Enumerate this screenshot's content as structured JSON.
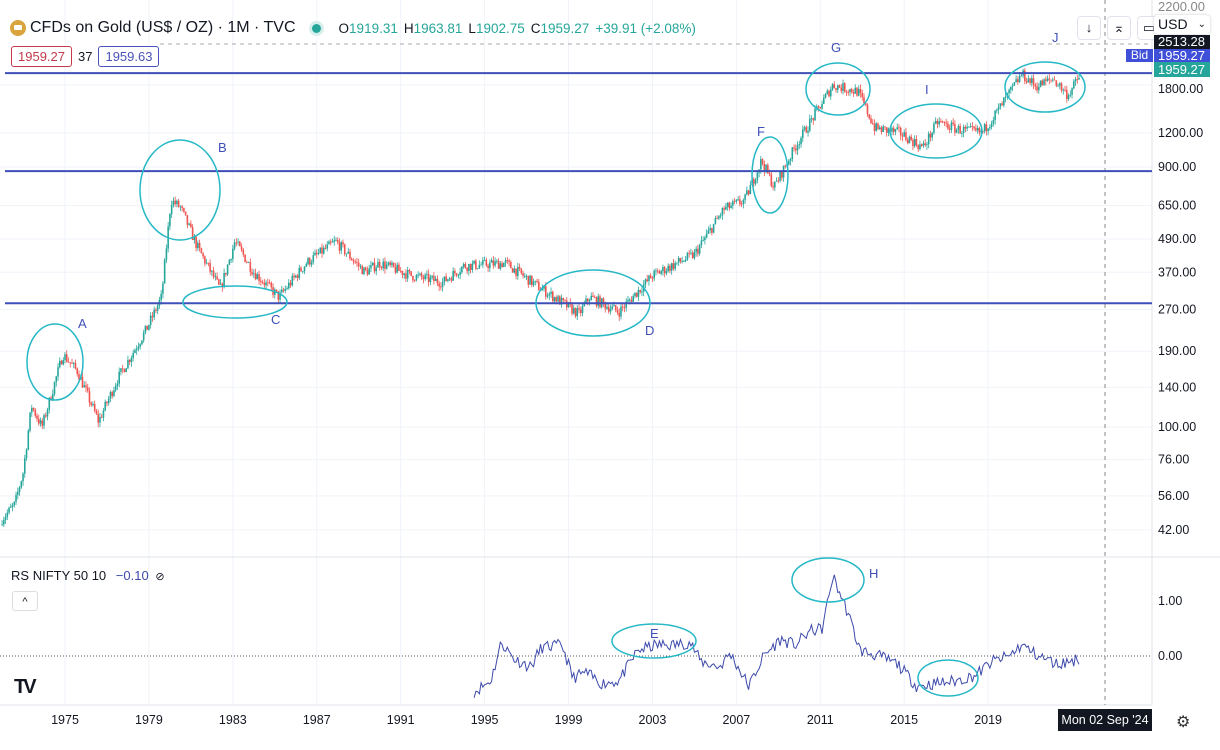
{
  "header": {
    "symbol_title": "CFDs on Gold (US$ / OZ) · 1M · TVC",
    "ohlc": [
      {
        "k": "O",
        "v": "1919.31"
      },
      {
        "k": "H",
        "v": "1963.81"
      },
      {
        "k": "L",
        "v": "1902.75"
      },
      {
        "k": "C",
        "v": "1959.27"
      }
    ],
    "change": "+39.91 (+2.08%)"
  },
  "trade": {
    "sell": "1959.27",
    "spread": "37",
    "buy": "1959.63"
  },
  "toolbar": {
    "down_icon": "↓",
    "collapse_icon": "⌅",
    "fullscreen_icon": "▭",
    "currency": "USD"
  },
  "price_tags": {
    "top": "2200.00",
    "high": "2513.28",
    "bid_label": "Bid",
    "bid": "1959.27",
    "last": "1959.27"
  },
  "colors": {
    "up": "#26a69a",
    "down": "#ef5350",
    "line": "#3d4aab",
    "drawing": "#26b8c6",
    "hline": "#3f4fb8"
  },
  "indicator": {
    "name": "RS",
    "params": "NIFTY 50 10",
    "value": "−0.10",
    "hidden_icon": "⊘",
    "collapse_icon": "^"
  },
  "crosshair_date": "Mon 02 Sep '24",
  "chart_data": {
    "type": "candlestick",
    "scale": "log",
    "price_axis_labels": [
      "1800.00",
      "1200.00",
      "900.00",
      "650.00",
      "490.00",
      "370.00",
      "270.00",
      "190.00",
      "140.00",
      "100.00",
      "76.00",
      "56.00",
      "42.00"
    ],
    "price_axis_values": [
      1800,
      1200,
      900,
      650,
      490,
      370,
      270,
      190,
      140,
      100,
      76,
      56,
      42
    ],
    "indicator_axis_labels": [
      "1.00",
      "0.00"
    ],
    "indicator_axis_values": [
      1,
      0
    ],
    "time_axis_labels": [
      "1975",
      "1979",
      "1983",
      "1987",
      "1991",
      "1995",
      "1999",
      "2003",
      "2007",
      "2011",
      "2015",
      "2019"
    ],
    "price_keypoints": [
      [
        1972.0,
        46
      ],
      [
        1972.6,
        52
      ],
      [
        1973.0,
        68
      ],
      [
        1973.4,
        120
      ],
      [
        1973.9,
        100
      ],
      [
        1974.9,
        185
      ],
      [
        1975.6,
        160
      ],
      [
        1976.6,
        105
      ],
      [
        1977.5,
        150
      ],
      [
        1978.9,
        230
      ],
      [
        1979.6,
        300
      ],
      [
        1980.05,
        680
      ],
      [
        1980.5,
        640
      ],
      [
        1981.3,
        460
      ],
      [
        1982.4,
        320
      ],
      [
        1983.1,
        480
      ],
      [
        1984.0,
        370
      ],
      [
        1985.2,
        300
      ],
      [
        1986.5,
        400
      ],
      [
        1987.9,
        480
      ],
      [
        1989.3,
        370
      ],
      [
        1990.0,
        400
      ],
      [
        1991.5,
        360
      ],
      [
        1993.0,
        340
      ],
      [
        1994.0,
        390
      ],
      [
        1996.0,
        400
      ],
      [
        1997.5,
        330
      ],
      [
        1999.5,
        260
      ],
      [
        2000.0,
        300
      ],
      [
        2001.4,
        265
      ],
      [
        2003.0,
        360
      ],
      [
        2005.0,
        430
      ],
      [
        2006.4,
        630
      ],
      [
        2007.4,
        680
      ],
      [
        2008.2,
        950
      ],
      [
        2008.8,
        760
      ],
      [
        2009.9,
        1100
      ],
      [
        2011.6,
        1800
      ],
      [
        2012.8,
        1700
      ],
      [
        2013.6,
        1250
      ],
      [
        2014.8,
        1200
      ],
      [
        2015.9,
        1060
      ],
      [
        2016.6,
        1320
      ],
      [
        2017.5,
        1240
      ],
      [
        2018.7,
        1200
      ],
      [
        2019.6,
        1500
      ],
      [
        2020.6,
        1970
      ],
      [
        2021.3,
        1780
      ],
      [
        2022.1,
        1900
      ],
      [
        2022.8,
        1650
      ],
      [
        2023.4,
        1959
      ]
    ],
    "rs_keypoints": [
      [
        1994.5,
        -0.65
      ],
      [
        1995.3,
        -0.45
      ],
      [
        1995.8,
        0.25
      ],
      [
        1996.4,
        -0.05
      ],
      [
        1997.2,
        -0.2
      ],
      [
        1997.7,
        0.15
      ],
      [
        1998.7,
        0.2
      ],
      [
        1999.2,
        -0.4
      ],
      [
        1999.8,
        -0.3
      ],
      [
        2000.6,
        -0.5
      ],
      [
        2001.4,
        -0.45
      ],
      [
        2002.3,
        0.1
      ],
      [
        2003.2,
        0.2
      ],
      [
        2004.0,
        0.2
      ],
      [
        2004.8,
        0.25
      ],
      [
        2005.3,
        -0.1
      ],
      [
        2006.2,
        -0.2
      ],
      [
        2006.7,
        0.05
      ],
      [
        2007.6,
        -0.55
      ],
      [
        2008.3,
        0.0
      ],
      [
        2009.1,
        0.3
      ],
      [
        2009.8,
        0.2
      ],
      [
        2010.5,
        0.45
      ],
      [
        2011.1,
        0.5
      ],
      [
        2011.6,
        1.45
      ],
      [
        2012.3,
        0.8
      ],
      [
        2012.9,
        0.1
      ],
      [
        2013.8,
        0.0
      ],
      [
        2014.7,
        -0.15
      ],
      [
        2015.6,
        -0.55
      ],
      [
        2016.5,
        -0.5
      ],
      [
        2017.5,
        -0.45
      ],
      [
        2018.4,
        -0.35
      ],
      [
        2019.2,
        -0.1
      ],
      [
        2020.0,
        0.0
      ],
      [
        2020.6,
        0.2
      ],
      [
        2021.4,
        0.0
      ],
      [
        2022.3,
        -0.15
      ],
      [
        2023.4,
        -0.05
      ]
    ],
    "horizontal_levels": [
      1990,
      870,
      285
    ],
    "annotations": [
      "A",
      "B",
      "C",
      "D",
      "E",
      "F",
      "G",
      "H",
      "I",
      "J"
    ]
  }
}
